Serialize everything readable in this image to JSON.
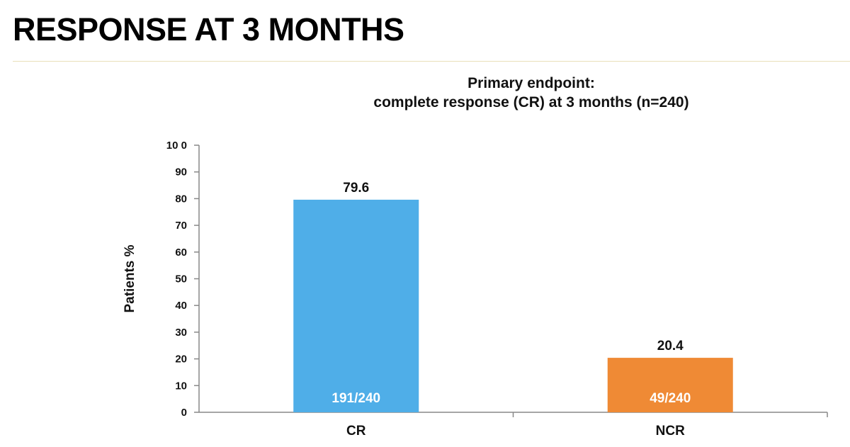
{
  "slide": {
    "title": "RESPONSE AT 3 MONTHS"
  },
  "chart_data": {
    "type": "bar",
    "title_lines": [
      "Primary endpoint:",
      "complete response (CR) at 3 months (n=240)"
    ],
    "ylabel": "Patients %",
    "xlabel": "",
    "ylim": [
      0,
      100
    ],
    "yticks": [
      0,
      10,
      20,
      30,
      40,
      50,
      60,
      70,
      80,
      90,
      100
    ],
    "ytick_labels": [
      "0",
      "10",
      "20",
      "30",
      "40",
      "50",
      "60",
      "70",
      "80",
      "90",
      "10 0"
    ],
    "grid": false,
    "legend": "none",
    "categories": [
      "CR",
      "NCR"
    ],
    "values": [
      79.6,
      20.4
    ],
    "value_labels": [
      "79.6",
      "20.4"
    ],
    "inner_labels": [
      "191/240",
      "49/240"
    ],
    "colors": [
      "#4faee8",
      "#ef8a35"
    ],
    "axis_color": "#888888"
  }
}
